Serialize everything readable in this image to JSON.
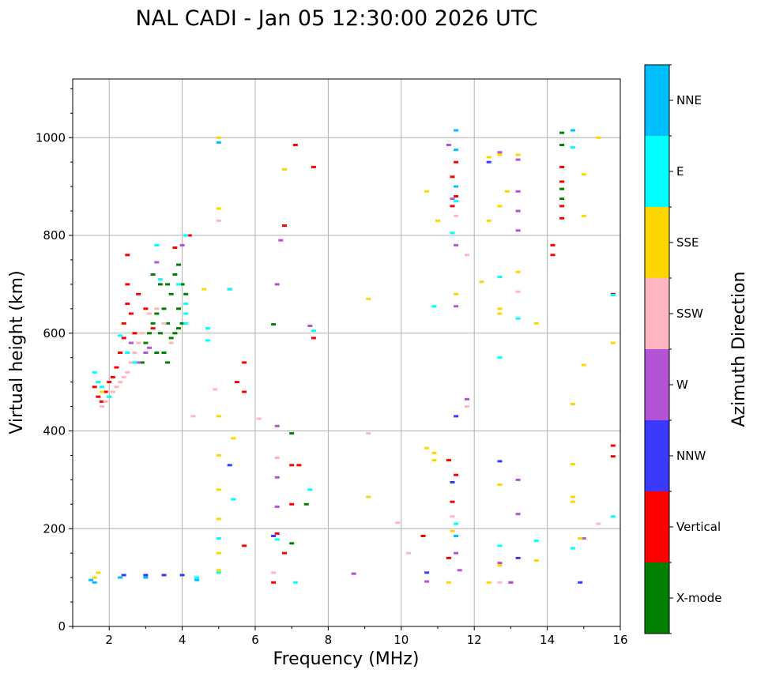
{
  "chart_data": {
    "type": "scatter",
    "title": "NAL CADI - Jan 05 12:30:00 2026 UTC",
    "xlabel": "Frequency (MHz)",
    "ylabel": "Virtual height (km)",
    "xlim": [
      1,
      16
    ],
    "ylim": [
      0,
      1120
    ],
    "xticks": [
      "2",
      "4",
      "6",
      "8",
      "10",
      "12",
      "14",
      "16"
    ],
    "yticks": [
      "0",
      "200",
      "400",
      "600",
      "800",
      "1000"
    ],
    "grid": true,
    "colorbar": {
      "label": "Azimuth Direction",
      "categories": [
        "X-mode",
        "Vertical",
        "NNW",
        "W",
        "SSW",
        "SSE",
        "E",
        "NNE"
      ],
      "colors": [
        "#008000",
        "#ff0000",
        "#3a3aff",
        "#b553d6",
        "#ffb6c1",
        "#ffd700",
        "#00ffff",
        "#00bfff"
      ]
    },
    "series": [
      {
        "name": "X-mode",
        "points": [
          [
            2.9,
            540
          ],
          [
            3.0,
            580
          ],
          [
            3.1,
            600
          ],
          [
            3.2,
            620
          ],
          [
            3.3,
            640
          ],
          [
            3.3,
            560
          ],
          [
            3.4,
            600
          ],
          [
            3.4,
            700
          ],
          [
            3.5,
            650
          ],
          [
            3.6,
            620
          ],
          [
            3.6,
            700
          ],
          [
            3.7,
            590
          ],
          [
            3.7,
            680
          ],
          [
            3.8,
            720
          ],
          [
            3.8,
            600
          ],
          [
            3.9,
            650
          ],
          [
            3.9,
            740
          ],
          [
            4.0,
            620
          ],
          [
            4.0,
            700
          ],
          [
            4.1,
            680
          ],
          [
            3.2,
            720
          ],
          [
            3.5,
            560
          ],
          [
            3.6,
            540
          ],
          [
            3.9,
            610
          ],
          [
            6.5,
            618
          ],
          [
            7.0,
            395
          ],
          [
            7.0,
            170
          ],
          [
            7.4,
            250
          ],
          [
            14.4,
            1010
          ],
          [
            14.4,
            985
          ],
          [
            14.4,
            895
          ],
          [
            14.4,
            875
          ]
        ]
      },
      {
        "name": "Vertical",
        "points": [
          [
            1.6,
            490
          ],
          [
            1.7,
            470
          ],
          [
            1.8,
            460
          ],
          [
            1.9,
            480
          ],
          [
            2.0,
            500
          ],
          [
            2.1,
            510
          ],
          [
            2.2,
            530
          ],
          [
            2.3,
            560
          ],
          [
            2.4,
            590
          ],
          [
            2.4,
            620
          ],
          [
            2.5,
            660
          ],
          [
            2.5,
            700
          ],
          [
            2.5,
            760
          ],
          [
            2.6,
            640
          ],
          [
            2.7,
            600
          ],
          [
            2.8,
            680
          ],
          [
            3.0,
            650
          ],
          [
            3.2,
            610
          ],
          [
            3.8,
            775
          ],
          [
            4.2,
            800
          ],
          [
            5.3,
            690
          ],
          [
            5.5,
            500
          ],
          [
            5.7,
            540
          ],
          [
            5.7,
            480
          ],
          [
            5.7,
            165
          ],
          [
            6.5,
            90
          ],
          [
            6.6,
            190
          ],
          [
            6.8,
            820
          ],
          [
            6.8,
            150
          ],
          [
            7.0,
            250
          ],
          [
            7.0,
            330
          ],
          [
            7.1,
            985
          ],
          [
            7.2,
            330
          ],
          [
            7.6,
            940
          ],
          [
            7.6,
            590
          ],
          [
            10.6,
            185
          ],
          [
            11.3,
            340
          ],
          [
            11.3,
            140
          ],
          [
            11.4,
            920
          ],
          [
            11.4,
            860
          ],
          [
            11.4,
            255
          ],
          [
            11.5,
            950
          ],
          [
            11.5,
            880
          ],
          [
            11.5,
            310
          ],
          [
            14.15,
            780
          ],
          [
            14.15,
            760
          ],
          [
            14.4,
            940
          ],
          [
            14.4,
            910
          ],
          [
            14.4,
            860
          ],
          [
            14.4,
            835
          ],
          [
            15.8,
            680
          ],
          [
            15.8,
            370
          ],
          [
            15.8,
            348
          ]
        ]
      },
      {
        "name": "NNW",
        "points": [
          [
            2.4,
            105
          ],
          [
            3.0,
            105
          ],
          [
            3.5,
            105
          ],
          [
            4.0,
            105
          ],
          [
            5.3,
            330
          ],
          [
            6.5,
            185
          ],
          [
            10.7,
            110
          ],
          [
            11.4,
            295
          ],
          [
            11.5,
            430
          ],
          [
            12.4,
            950
          ],
          [
            12.7,
            338
          ],
          [
            13.0,
            90
          ],
          [
            13.2,
            140
          ],
          [
            14.9,
            90
          ]
        ]
      },
      {
        "name": "W",
        "points": [
          [
            2.6,
            580
          ],
          [
            2.8,
            540
          ],
          [
            3.0,
            560
          ],
          [
            3.1,
            570
          ],
          [
            3.3,
            745
          ],
          [
            4.0,
            780
          ],
          [
            6.6,
            410
          ],
          [
            6.6,
            700
          ],
          [
            6.6,
            305
          ],
          [
            6.6,
            245
          ],
          [
            6.7,
            790
          ],
          [
            7.5,
            615
          ],
          [
            8.7,
            108
          ],
          [
            10.7,
            92
          ],
          [
            11.3,
            985
          ],
          [
            11.4,
            875
          ],
          [
            11.5,
            780
          ],
          [
            11.5,
            655
          ],
          [
            11.5,
            150
          ],
          [
            11.6,
            115
          ],
          [
            11.8,
            465
          ],
          [
            12.7,
            970
          ],
          [
            12.7,
            130
          ],
          [
            13.0,
            90
          ],
          [
            13.2,
            955
          ],
          [
            13.2,
            890
          ],
          [
            13.2,
            850
          ],
          [
            13.2,
            810
          ],
          [
            13.2,
            300
          ],
          [
            13.2,
            230
          ],
          [
            15.0,
            180
          ]
        ]
      },
      {
        "name": "SSW",
        "points": [
          [
            1.8,
            450
          ],
          [
            1.9,
            460
          ],
          [
            2.0,
            470
          ],
          [
            2.1,
            480
          ],
          [
            2.2,
            490
          ],
          [
            2.3,
            500
          ],
          [
            2.4,
            510
          ],
          [
            2.5,
            520
          ],
          [
            2.6,
            540
          ],
          [
            2.7,
            560
          ],
          [
            2.8,
            580
          ],
          [
            2.9,
            600
          ],
          [
            3.1,
            640
          ],
          [
            3.3,
            650
          ],
          [
            3.5,
            620
          ],
          [
            3.7,
            580
          ],
          [
            4.3,
            430
          ],
          [
            4.9,
            485
          ],
          [
            5.0,
            830
          ],
          [
            6.1,
            425
          ],
          [
            6.5,
            110
          ],
          [
            6.6,
            345
          ],
          [
            9.1,
            395
          ],
          [
            9.9,
            212
          ],
          [
            10.2,
            150
          ],
          [
            11.4,
            225
          ],
          [
            11.5,
            840
          ],
          [
            11.8,
            760
          ],
          [
            11.8,
            450
          ],
          [
            12.7,
            90
          ],
          [
            13.2,
            685
          ],
          [
            15.4,
            210
          ]
        ]
      },
      {
        "name": "SSE",
        "points": [
          [
            1.6,
            100
          ],
          [
            1.7,
            110
          ],
          [
            1.8,
            480
          ],
          [
            2.0,
            470
          ],
          [
            4.6,
            690
          ],
          [
            5.0,
            1000
          ],
          [
            5.0,
            855
          ],
          [
            5.0,
            430
          ],
          [
            5.0,
            350
          ],
          [
            5.0,
            280
          ],
          [
            5.0,
            220
          ],
          [
            5.0,
            150
          ],
          [
            5.0,
            115
          ],
          [
            5.4,
            385
          ],
          [
            6.8,
            935
          ],
          [
            9.1,
            670
          ],
          [
            9.1,
            265
          ],
          [
            10.7,
            890
          ],
          [
            10.7,
            365
          ],
          [
            10.9,
            355
          ],
          [
            10.9,
            340
          ],
          [
            11.0,
            830
          ],
          [
            11.3,
            90
          ],
          [
            11.4,
            195
          ],
          [
            11.5,
            680
          ],
          [
            12.2,
            705
          ],
          [
            12.4,
            90
          ],
          [
            12.4,
            960
          ],
          [
            12.4,
            830
          ],
          [
            12.7,
            965
          ],
          [
            12.7,
            860
          ],
          [
            12.7,
            650
          ],
          [
            12.7,
            640
          ],
          [
            12.7,
            290
          ],
          [
            12.7,
            125
          ],
          [
            12.9,
            890
          ],
          [
            13.2,
            965
          ],
          [
            13.2,
            725
          ],
          [
            13.7,
            620
          ],
          [
            13.7,
            135
          ],
          [
            14.7,
            455
          ],
          [
            14.7,
            332
          ],
          [
            14.7,
            265
          ],
          [
            14.7,
            255
          ],
          [
            14.9,
            180
          ],
          [
            15.0,
            925
          ],
          [
            15.0,
            840
          ],
          [
            15.0,
            535
          ],
          [
            15.4,
            1000
          ],
          [
            15.8,
            580
          ]
        ]
      },
      {
        "name": "E",
        "points": [
          [
            1.6,
            520
          ],
          [
            1.7,
            500
          ],
          [
            1.8,
            490
          ],
          [
            2.0,
            470
          ],
          [
            2.3,
            595
          ],
          [
            2.5,
            560
          ],
          [
            2.7,
            540
          ],
          [
            3.3,
            780
          ],
          [
            3.4,
            710
          ],
          [
            3.9,
            700
          ],
          [
            4.1,
            800
          ],
          [
            4.1,
            660
          ],
          [
            4.1,
            640
          ],
          [
            4.1,
            620
          ],
          [
            4.4,
            100
          ],
          [
            4.7,
            610
          ],
          [
            4.7,
            585
          ],
          [
            5.0,
            180
          ],
          [
            5.0,
            110
          ],
          [
            5.3,
            690
          ],
          [
            5.4,
            260
          ],
          [
            6.6,
            178
          ],
          [
            7.1,
            90
          ],
          [
            7.5,
            280
          ],
          [
            7.6,
            605
          ],
          [
            10.9,
            655
          ],
          [
            11.4,
            805
          ],
          [
            11.5,
            870
          ],
          [
            11.5,
            210
          ],
          [
            12.7,
            715
          ],
          [
            12.7,
            550
          ],
          [
            12.7,
            165
          ],
          [
            13.2,
            630
          ],
          [
            13.7,
            175
          ],
          [
            14.7,
            980
          ],
          [
            14.7,
            160
          ],
          [
            15.8,
            678
          ],
          [
            15.8,
            225
          ]
        ]
      },
      {
        "name": "NNE",
        "points": [
          [
            1.5,
            95
          ],
          [
            1.6,
            90
          ],
          [
            2.3,
            100
          ],
          [
            3.0,
            100
          ],
          [
            4.4,
            95
          ],
          [
            5.0,
            990
          ],
          [
            11.5,
            1015
          ],
          [
            11.5,
            975
          ],
          [
            11.5,
            900
          ],
          [
            11.5,
            185
          ],
          [
            14.7,
            1015
          ]
        ]
      }
    ]
  }
}
